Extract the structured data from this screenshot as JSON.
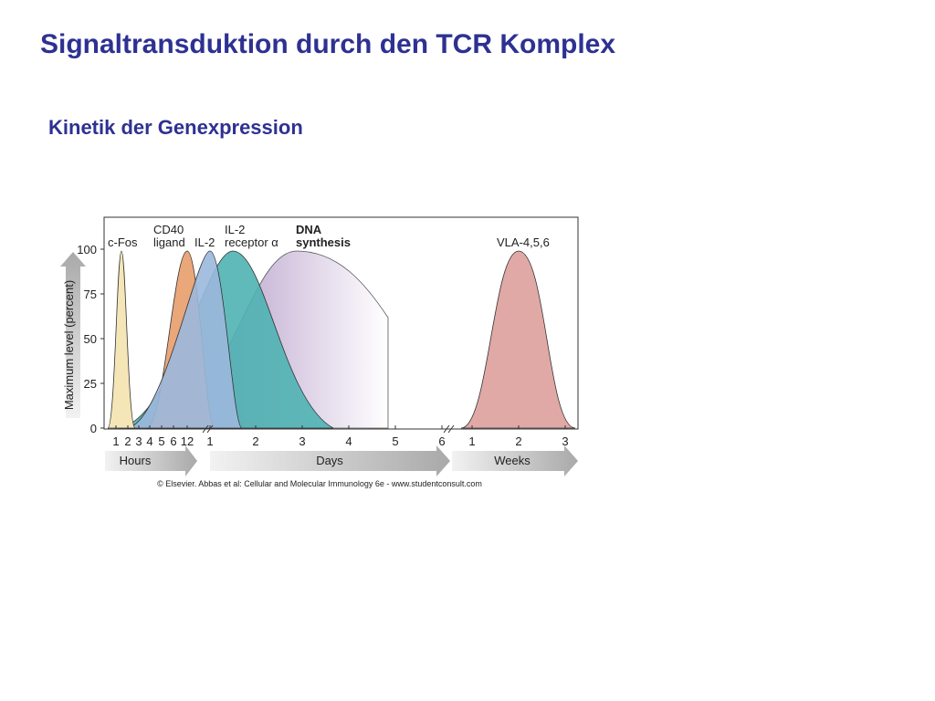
{
  "title": "Signaltransduktion durch den TCR Komplex",
  "subtitle": "Kinetik der Genexpression",
  "figure": {
    "y_axis_label": "Maximum level (percent)",
    "y_ticks": [
      100,
      75,
      50,
      25,
      0
    ],
    "curve_labels": [
      [
        "c-Fos"
      ],
      [
        "CD40",
        "ligand"
      ],
      [
        "IL-2"
      ],
      [
        "IL-2",
        "receptor α"
      ],
      [
        "DNA",
        "synthesis"
      ],
      [
        "VLA-4,5,6"
      ]
    ],
    "hour_ticks": [
      1,
      2,
      3,
      4,
      5,
      6,
      12
    ],
    "day_ticks": [
      1,
      2,
      3,
      4,
      5,
      6
    ],
    "week_ticks": [
      1,
      2,
      3
    ],
    "time_bands": [
      "Hours",
      "Days",
      "Weeks"
    ],
    "credit": "© Elsevier. Abbas et al: Cellular and Molecular Immunology 6e - www.studentconsult.com"
  }
}
